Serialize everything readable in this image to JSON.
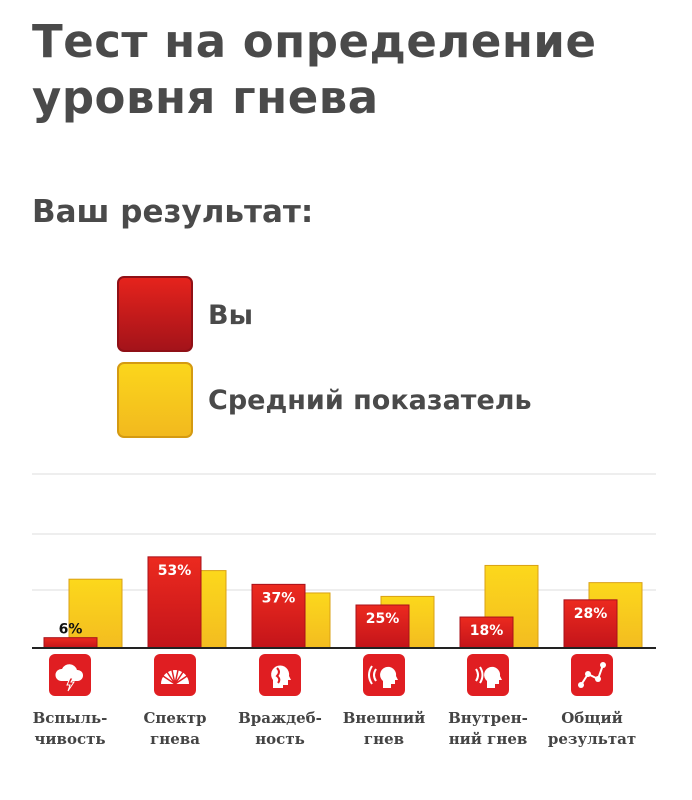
{
  "page": {
    "title": "Тест на определение уровня гнева",
    "subtitle": "Ваш результат:"
  },
  "legend": {
    "you_label": "Вы",
    "average_label": "Средний показатель"
  },
  "colors": {
    "you": "#d8201d",
    "average": "#f8c81f",
    "icon_bg": "#e01e22",
    "grid": "#dddddd",
    "baseline": "#222222"
  },
  "categories": [
    {
      "label": "Вспыль-\nчивость",
      "icon": "storm-cloud-icon"
    },
    {
      "label": "Спектр\nгнева",
      "icon": "spectrum-fan-icon"
    },
    {
      "label": "Враждеб-\nность",
      "icon": "hostility-head-icon"
    },
    {
      "label": "Внешний\nгнев",
      "icon": "outer-anger-icon"
    },
    {
      "label": "Внутрен-\nний гнев",
      "icon": "inner-anger-icon"
    },
    {
      "label": "Общий\nрезультат",
      "icon": "graph-nodes-icon"
    }
  ],
  "chart_data": {
    "type": "bar",
    "categories": [
      "Вспыльчивость",
      "Спектр гнева",
      "Враждебность",
      "Внешний гнев",
      "Внутренний гнев",
      "Общий результат"
    ],
    "series": [
      {
        "name": "Вы",
        "values": [
          6,
          53,
          37,
          25,
          18,
          28
        ],
        "labels": [
          "6%",
          "53%",
          "37%",
          "25%",
          "18%",
          "28%"
        ]
      },
      {
        "name": "Средний показатель",
        "values": [
          40,
          45,
          32,
          30,
          48,
          38
        ]
      }
    ],
    "ylim": [
      0,
      100
    ],
    "grid": true
  }
}
